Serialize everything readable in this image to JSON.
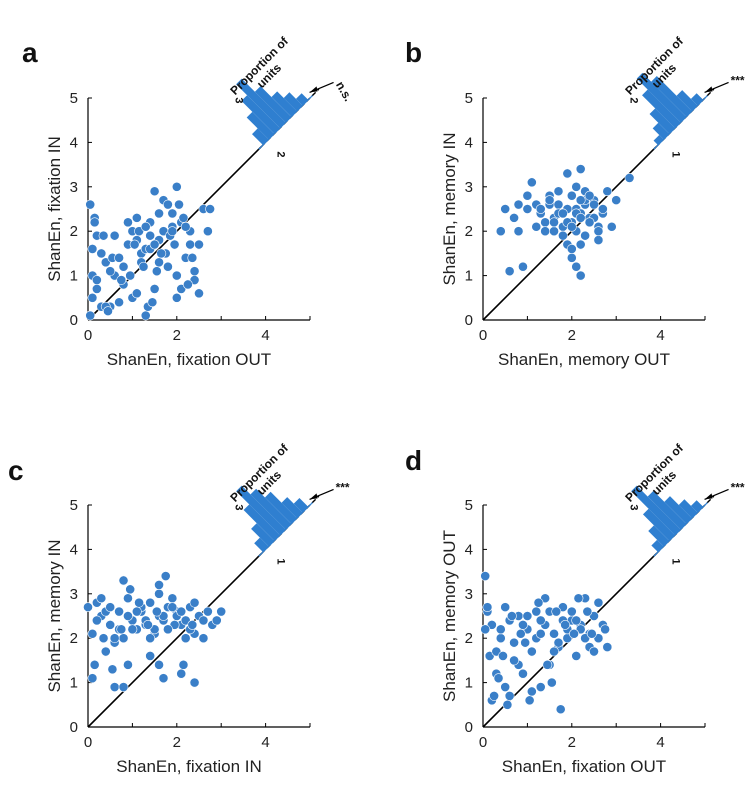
{
  "colors": {
    "marker": "#3a7fc8",
    "hist": "#2f7fd0",
    "axis": "#000000"
  },
  "hist_title": [
    "Proportion of",
    "units"
  ],
  "chart_data": [
    {
      "type": "scatter",
      "panel": "a",
      "xlabel": "ShanEn, fixation OUT",
      "ylabel": "ShanEn, fixation IN",
      "xlim": [
        0,
        5
      ],
      "ylim": [
        0,
        5
      ],
      "xticks": [
        0,
        2,
        4
      ],
      "yticks": [
        0,
        1,
        2,
        3,
        4,
        5
      ],
      "diagonal": "y = x",
      "hist_labels": {
        "left": "3",
        "right": "2"
      },
      "significance": "n.s.",
      "hist_bins": [
        0.25,
        0.5,
        0.75,
        1.0,
        0.7,
        0.45,
        0.3,
        0.15
      ],
      "x": [
        0.05,
        0.1,
        0.1,
        0.15,
        0.2,
        0.3,
        0.4,
        0.5,
        0.6,
        0.8,
        0.9,
        1.0,
        1.1,
        1.2,
        1.3,
        1.4,
        1.5,
        1.6,
        1.7,
        1.8,
        1.9,
        2.0,
        2.1,
        2.2,
        2.3,
        2.4,
        2.5,
        2.6,
        2.7,
        2.75,
        0.2,
        0.3,
        0.5,
        0.7,
        0.9,
        1.1,
        1.3,
        1.5,
        1.7,
        1.9,
        2.1,
        2.3,
        2.5,
        0.1,
        0.4,
        0.6,
        0.8,
        1.0,
        1.2,
        1.4,
        1.6,
        1.8,
        2.0,
        2.2,
        2.4,
        0.15,
        0.35,
        0.55,
        0.75,
        0.95,
        1.15,
        1.35,
        1.55,
        1.75,
        1.95,
        2.15,
        2.35,
        1.4,
        1.6,
        2.0,
        0.2,
        0.45,
        0.7,
        1.05,
        1.25,
        1.45,
        1.65,
        1.85,
        2.05,
        2.25,
        1.1,
        1.3,
        1.5,
        1.9,
        0.05
      ],
      "y": [
        0.1,
        0.5,
        1.0,
        2.3,
        1.9,
        0.3,
        1.3,
        0.3,
        1.0,
        0.8,
        2.2,
        0.5,
        1.8,
        1.5,
        0.1,
        1.9,
        0.7,
        1.3,
        2.0,
        1.2,
        2.4,
        1.0,
        2.2,
        1.4,
        2.0,
        0.9,
        1.7,
        2.5,
        2.0,
        2.5,
        0.7,
        1.5,
        1.1,
        0.4,
        1.7,
        0.6,
        1.6,
        2.9,
        2.7,
        2.1,
        0.7,
        1.7,
        0.6,
        1.6,
        0.3,
        1.9,
        1.2,
        2.0,
        1.3,
        1.6,
        1.8,
        2.6,
        0.5,
        2.1,
        1.1,
        2.2,
        1.9,
        1.4,
        0.9,
        1.0,
        2.0,
        0.3,
        1.1,
        1.5,
        1.7,
        2.3,
        1.4,
        2.2,
        2.4,
        3.0,
        0.9,
        0.2,
        1.4,
        1.7,
        1.2,
        0.4,
        1.5,
        1.9,
        2.6,
        0.8,
        2.3,
        2.1,
        1.7,
        2.0,
        2.6
      ],
      "sigma": [
        0.1,
        0.1
      ]
    },
    {
      "type": "scatter",
      "panel": "b",
      "xlabel": "ShanEn, memory OUT",
      "ylabel": "ShanEn, memory IN",
      "xlim": [
        0,
        5
      ],
      "ylim": [
        0,
        5
      ],
      "xticks": [
        0,
        2,
        4
      ],
      "yticks": [
        0,
        1,
        2,
        3,
        4,
        5
      ],
      "diagonal": "y = x",
      "hist_labels": {
        "left": "2",
        "right": "1"
      },
      "significance": "***",
      "hist_bins": [
        0.1,
        0.25,
        0.45,
        0.75,
        1.0,
        0.8,
        0.35,
        0.15
      ],
      "x": [
        0.4,
        0.5,
        0.6,
        0.7,
        0.8,
        0.9,
        1.0,
        1.1,
        1.2,
        1.3,
        1.4,
        1.5,
        1.6,
        1.7,
        1.8,
        1.9,
        2.0,
        2.1,
        2.2,
        2.3,
        2.4,
        2.5,
        2.6,
        2.7,
        2.8,
        2.9,
        3.0,
        3.3,
        1.2,
        1.4,
        1.6,
        1.8,
        2.0,
        2.2,
        2.4,
        2.6,
        1.5,
        1.7,
        1.9,
        2.1,
        2.3,
        2.5,
        1.3,
        1.5,
        1.7,
        1.9,
        2.1,
        2.3,
        2.5,
        2.7,
        1.6,
        1.8,
        2.0,
        2.2,
        2.4,
        2.0,
        2.1,
        2.2,
        2.0,
        2.2,
        1.9,
        2.1,
        2.3,
        2.4,
        1.8,
        2.2,
        2.6,
        1.0,
        0.8
      ],
      "y": [
        2.0,
        2.5,
        1.1,
        2.3,
        2.0,
        1.2,
        2.8,
        3.1,
        2.1,
        2.4,
        2.2,
        2.6,
        2.0,
        2.9,
        2.4,
        1.7,
        2.8,
        2.5,
        3.4,
        2.6,
        2.2,
        2.7,
        1.8,
        2.4,
        2.9,
        2.1,
        2.7,
        3.2,
        2.6,
        2.0,
        2.3,
        2.1,
        2.2,
        2.4,
        2.3,
        2.1,
        2.8,
        2.6,
        2.5,
        2.4,
        2.7,
        2.3,
        2.5,
        2.7,
        2.4,
        2.2,
        2.0,
        1.9,
        2.6,
        2.5,
        2.2,
        2.4,
        2.1,
        2.3,
        2.2,
        1.4,
        1.2,
        1.0,
        1.6,
        2.7,
        3.3,
        3.0,
        2.9,
        2.8,
        1.9,
        1.7,
        2.0,
        2.5,
        2.6
      ],
      "sigma": [
        0.1,
        0.1
      ]
    },
    {
      "type": "scatter",
      "panel": "c",
      "xlabel": "ShanEn, fixation IN",
      "ylabel": "ShanEn, memory IN",
      "xlim": [
        0,
        5
      ],
      "ylim": [
        0,
        5
      ],
      "xticks": [
        0,
        2,
        4
      ],
      "yticks": [
        0,
        1,
        2,
        3,
        4,
        5
      ],
      "diagonal": "y = x",
      "hist_labels": {
        "left": "3",
        "right": "1"
      },
      "significance": "***",
      "hist_bins": [
        0.2,
        0.4,
        0.7,
        1.0,
        0.8,
        0.6,
        0.35,
        0.2
      ],
      "x": [
        0.0,
        0.1,
        0.2,
        0.3,
        0.4,
        0.5,
        0.6,
        0.7,
        0.8,
        0.9,
        1.0,
        1.1,
        1.2,
        1.3,
        1.4,
        1.5,
        1.6,
        1.7,
        1.8,
        1.9,
        2.0,
        2.1,
        2.2,
        2.3,
        2.4,
        2.5,
        2.6,
        2.7,
        2.8,
        2.9,
        3.0,
        0.2,
        0.4,
        0.6,
        0.8,
        1.0,
        1.2,
        1.4,
        1.6,
        1.8,
        2.0,
        2.2,
        2.4,
        2.6,
        0.3,
        0.5,
        0.7,
        0.9,
        1.1,
        1.3,
        1.5,
        1.7,
        1.9,
        2.1,
        2.3,
        2.5,
        0.15,
        0.35,
        0.55,
        0.75,
        0.95,
        1.15,
        1.35,
        1.55,
        1.75,
        1.95,
        2.15,
        2.35,
        1.6,
        1.7,
        1.8,
        0.1,
        0.9,
        1.6,
        2.1,
        2.4,
        2.6,
        0.6,
        0.8,
        1.4
      ],
      "y": [
        2.7,
        2.1,
        2.8,
        2.5,
        1.7,
        2.3,
        1.9,
        2.6,
        2.0,
        2.9,
        2.4,
        2.2,
        2.6,
        2.3,
        2.8,
        2.1,
        2.5,
        2.4,
        2.2,
        2.9,
        2.6,
        2.3,
        2.4,
        2.7,
        2.1,
        2.5,
        2.0,
        2.6,
        2.3,
        2.4,
        2.6,
        2.4,
        2.6,
        2.0,
        3.3,
        2.2,
        2.7,
        2.0,
        3.0,
        2.7,
        2.5,
        2.0,
        2.8,
        2.4,
        2.9,
        2.7,
        2.2,
        2.5,
        2.6,
        2.4,
        2.2,
        2.5,
        2.7,
        2.6,
        2.2,
        2.5,
        1.4,
        2.0,
        1.3,
        2.2,
        3.1,
        2.8,
        2.3,
        2.6,
        3.4,
        2.3,
        1.4,
        2.3,
        3.2,
        1.1,
        2.2,
        1.1,
        1.4,
        1.4,
        1.2,
        1.0,
        2.4,
        0.9,
        0.9,
        1.6
      ],
      "sigma": [
        0.1,
        0.1
      ]
    },
    {
      "type": "scatter",
      "panel": "d",
      "xlabel": "ShanEn, fixation OUT",
      "ylabel": "ShanEn, memory OUT",
      "xlim": [
        0,
        5
      ],
      "ylim": [
        0,
        5
      ],
      "xticks": [
        0,
        2,
        4
      ],
      "yticks": [
        0,
        1,
        2,
        3,
        4,
        5
      ],
      "diagonal": "y = x",
      "hist_labels": {
        "left": "3",
        "right": "1"
      },
      "significance": "***",
      "hist_bins": [
        0.15,
        0.35,
        0.6,
        1.0,
        0.75,
        0.5,
        0.3,
        0.15
      ],
      "x": [
        0.05,
        0.1,
        0.15,
        0.2,
        0.3,
        0.4,
        0.5,
        0.6,
        0.7,
        0.8,
        0.9,
        1.0,
        1.1,
        1.2,
        1.3,
        1.4,
        1.5,
        1.6,
        1.7,
        1.8,
        1.9,
        2.0,
        2.1,
        2.2,
        2.3,
        2.4,
        2.5,
        2.6,
        2.7,
        2.8,
        0.2,
        0.4,
        0.6,
        0.8,
        1.0,
        1.2,
        1.4,
        1.6,
        1.8,
        2.0,
        2.2,
        2.4,
        2.6,
        0.3,
        0.5,
        0.7,
        0.9,
        1.1,
        1.3,
        1.5,
        1.7,
        1.9,
        2.1,
        2.3,
        2.5,
        0.1,
        0.35,
        0.65,
        0.95,
        1.25,
        1.55,
        1.85,
        2.15,
        2.45,
        0.05,
        0.25,
        0.45,
        0.55,
        0.85,
        1.05,
        1.45,
        1.65,
        1.75,
        2.05,
        2.35,
        2.75,
        1.3
      ],
      "y": [
        3.4,
        2.6,
        1.6,
        2.3,
        1.7,
        2.0,
        0.9,
        2.4,
        1.9,
        2.5,
        1.2,
        2.2,
        1.7,
        2.6,
        0.9,
        2.3,
        1.4,
        2.1,
        1.8,
        2.7,
        2.0,
        2.4,
        1.6,
        2.3,
        2.9,
        2.1,
        2.5,
        2.0,
        2.3,
        1.8,
        0.6,
        2.2,
        0.7,
        1.4,
        2.5,
        2.0,
        2.9,
        1.7,
        2.4,
        2.6,
        2.2,
        1.8,
        2.8,
        1.2,
        2.7,
        1.5,
        2.3,
        0.8,
        2.1,
        2.6,
        1.9,
        2.2,
        2.4,
        2.0,
        1.7,
        2.7,
        1.1,
        2.5,
        1.9,
        2.8,
        1.0,
        2.3,
        2.9,
        2.1,
        2.2,
        0.7,
        1.6,
        0.5,
        2.1,
        0.6,
        1.4,
        2.6,
        0.4,
        2.1,
        2.6,
        2.2,
        2.4
      ],
      "sigma": [
        0.1,
        0.1
      ]
    }
  ]
}
